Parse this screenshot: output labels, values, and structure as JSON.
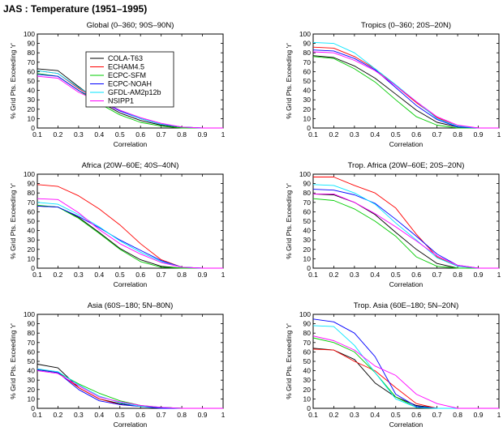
{
  "figure": {
    "title": "JAS : Temperature (1951–1995)"
  },
  "colors": {
    "COLA-T63": "#000000",
    "ECHAM4.5": "#ff0000",
    "ECPC-SFM": "#00cc00",
    "ECPC-NOAH": "#0000ff",
    "GFDL-AM2p12b": "#00e5ff",
    "NSIPP1": "#ff00ff"
  },
  "chart_data": [
    {
      "type": "line",
      "title": "Global (0–360; 90S–90N)",
      "xlabel": "Correlation",
      "ylabel": "% Grid Pts. Exceeding 'r'",
      "xlim": [
        0.1,
        1
      ],
      "ylim": [
        0,
        100
      ],
      "legend": "upper-left",
      "x": [
        0.1,
        0.2,
        0.3,
        0.4,
        0.5,
        0.6,
        0.7,
        0.8,
        0.9,
        1.0
      ],
      "series": [
        {
          "name": "COLA-T63",
          "values": [
            63,
            61,
            44,
            28,
            16,
            8,
            3,
            0,
            0,
            0
          ]
        },
        {
          "name": "ECHAM4.5",
          "values": [
            61,
            58,
            42,
            30,
            19,
            10,
            4,
            1,
            0,
            0
          ]
        },
        {
          "name": "ECPC-SFM",
          "values": [
            58,
            55,
            40,
            26,
            14,
            6,
            2,
            0,
            0,
            0
          ]
        },
        {
          "name": "ECPC-NOAH",
          "values": [
            57,
            55,
            40,
            29,
            18,
            10,
            4,
            1,
            0,
            0
          ]
        },
        {
          "name": "GFDL-AM2p12b",
          "values": [
            61,
            58,
            43,
            30,
            19,
            10,
            4,
            1,
            0,
            0
          ]
        },
        {
          "name": "NSIPP1",
          "values": [
            55,
            53,
            38,
            28,
            19,
            11,
            5,
            1,
            0,
            0
          ]
        }
      ]
    },
    {
      "type": "line",
      "title": "Tropics (0–360; 20S–20N)",
      "xlabel": "Correlation",
      "ylabel": "% Grid Pts. Exceeding 'r'",
      "xlim": [
        0.1,
        1
      ],
      "ylim": [
        0,
        100
      ],
      "x": [
        0.1,
        0.2,
        0.3,
        0.4,
        0.5,
        0.6,
        0.7,
        0.8,
        0.9,
        1.0
      ],
      "series": [
        {
          "name": "COLA-T63",
          "values": [
            77,
            75,
            66,
            53,
            36,
            19,
            6,
            1,
            0,
            0
          ]
        },
        {
          "name": "ECHAM4.5",
          "values": [
            86,
            85,
            76,
            63,
            45,
            27,
            11,
            2,
            0,
            0
          ]
        },
        {
          "name": "ECPC-SFM",
          "values": [
            76,
            74,
            63,
            49,
            30,
            12,
            3,
            0,
            0,
            0
          ]
        },
        {
          "name": "ECPC-NOAH",
          "values": [
            83,
            82,
            74,
            62,
            43,
            24,
            9,
            1,
            0,
            0
          ]
        },
        {
          "name": "GFDL-AM2p12b",
          "values": [
            91,
            90,
            80,
            63,
            46,
            28,
            10,
            2,
            0,
            0
          ]
        },
        {
          "name": "NSIPP1",
          "values": [
            81,
            80,
            72,
            61,
            45,
            28,
            12,
            3,
            0,
            0
          ]
        }
      ]
    },
    {
      "type": "line",
      "title": "Africa (20W–60E; 40S–40N)",
      "xlabel": "Correlation",
      "ylabel": "% Grid Pts. Exceeding 'r'",
      "xlim": [
        0.1,
        1
      ],
      "ylim": [
        0,
        100
      ],
      "x": [
        0.1,
        0.2,
        0.3,
        0.4,
        0.5,
        0.6,
        0.7,
        0.8,
        0.9,
        1.0
      ],
      "series": [
        {
          "name": "COLA-T63",
          "values": [
            66,
            65,
            54,
            38,
            21,
            9,
            2,
            0,
            0,
            0
          ]
        },
        {
          "name": "ECHAM4.5",
          "values": [
            89,
            87,
            77,
            63,
            46,
            26,
            9,
            1,
            0,
            0
          ]
        },
        {
          "name": "ECPC-SFM",
          "values": [
            67,
            65,
            53,
            37,
            20,
            7,
            1,
            0,
            0,
            0
          ]
        },
        {
          "name": "ECPC-NOAH",
          "values": [
            66,
            65,
            55,
            43,
            30,
            19,
            8,
            1,
            0,
            0
          ]
        },
        {
          "name": "GFDL-AM2p12b",
          "values": [
            70,
            68,
            57,
            44,
            29,
            17,
            7,
            1,
            0,
            0
          ]
        },
        {
          "name": "NSIPP1",
          "values": [
            74,
            73,
            59,
            41,
            26,
            15,
            6,
            1,
            0,
            0
          ]
        }
      ]
    },
    {
      "type": "line",
      "title": "Trop. Africa (20W–60E; 20S–20N)",
      "xlabel": "Correlation",
      "ylabel": "% Grid Pts. Exceeding 'r'",
      "xlim": [
        0.1,
        1
      ],
      "ylim": [
        0,
        100
      ],
      "x": [
        0.1,
        0.2,
        0.3,
        0.4,
        0.5,
        0.6,
        0.7,
        0.8,
        0.9,
        1.0
      ],
      "series": [
        {
          "name": "COLA-T63",
          "values": [
            79,
            78,
            70,
            57,
            38,
            20,
            5,
            0,
            0,
            0
          ]
        },
        {
          "name": "ECHAM4.5",
          "values": [
            97,
            97,
            88,
            80,
            64,
            36,
            12,
            2,
            0,
            0
          ]
        },
        {
          "name": "ECPC-SFM",
          "values": [
            74,
            72,
            63,
            50,
            34,
            12,
            2,
            0,
            0,
            0
          ]
        },
        {
          "name": "ECPC-NOAH",
          "values": [
            84,
            83,
            78,
            69,
            52,
            34,
            15,
            3,
            0,
            0
          ]
        },
        {
          "name": "GFDL-AM2p12b",
          "values": [
            89,
            88,
            80,
            68,
            48,
            30,
            11,
            2,
            0,
            0
          ]
        },
        {
          "name": "NSIPP1",
          "values": [
            79,
            79,
            70,
            58,
            44,
            29,
            13,
            3,
            0,
            0
          ]
        }
      ]
    },
    {
      "type": "line",
      "title": "Asia (60S–180; 5N–80N)",
      "xlabel": "Correlation",
      "ylabel": "% Grid Pts. Exceeding 'r'",
      "xlim": [
        0.1,
        1
      ],
      "ylim": [
        0,
        100
      ],
      "x": [
        0.1,
        0.2,
        0.3,
        0.4,
        0.5,
        0.6,
        0.7,
        0.8,
        0.9,
        1.0
      ],
      "series": [
        {
          "name": "COLA-T63",
          "values": [
            47,
            43,
            22,
            10,
            5,
            2,
            1,
            0,
            0,
            0
          ]
        },
        {
          "name": "ECHAM4.5",
          "values": [
            42,
            38,
            22,
            10,
            4,
            2,
            1,
            0,
            0,
            0
          ]
        },
        {
          "name": "ECPC-SFM",
          "values": [
            41,
            38,
            26,
            16,
            8,
            3,
            1,
            0,
            0,
            0
          ]
        },
        {
          "name": "ECPC-NOAH",
          "values": [
            41,
            38,
            20,
            8,
            4,
            2,
            0,
            0,
            0,
            0
          ]
        },
        {
          "name": "GFDL-AM2p12b",
          "values": [
            42,
            39,
            25,
            13,
            6,
            2,
            1,
            0,
            0,
            0
          ]
        },
        {
          "name": "NSIPP1",
          "values": [
            40,
            37,
            24,
            12,
            7,
            3,
            1,
            0,
            0,
            0
          ]
        }
      ]
    },
    {
      "type": "line",
      "title": "Trop. Asia (60E–180; 5N–20N)",
      "xlabel": "Correlation",
      "ylabel": "% Grid Pts. Exceeding 'r'",
      "xlim": [
        0.1,
        1
      ],
      "ylim": [
        0,
        100
      ],
      "x": [
        0.1,
        0.2,
        0.3,
        0.4,
        0.5,
        0.6,
        0.7,
        0.8,
        0.9,
        1.0
      ],
      "series": [
        {
          "name": "COLA-T63",
          "values": [
            64,
            62,
            52,
            27,
            12,
            3,
            0,
            0,
            0,
            0
          ]
        },
        {
          "name": "ECHAM4.5",
          "values": [
            63,
            62,
            50,
            40,
            22,
            5,
            0,
            0,
            0,
            0
          ]
        },
        {
          "name": "ECPC-SFM",
          "values": [
            75,
            70,
            60,
            38,
            12,
            1,
            0,
            0,
            0,
            0
          ]
        },
        {
          "name": "ECPC-NOAH",
          "values": [
            95,
            92,
            80,
            55,
            15,
            2,
            0,
            0,
            0,
            0
          ]
        },
        {
          "name": "GFDL-AM2p12b",
          "values": [
            88,
            87,
            67,
            38,
            10,
            1,
            0,
            0,
            0,
            0
          ]
        },
        {
          "name": "NSIPP1",
          "values": [
            77,
            72,
            62,
            45,
            35,
            15,
            5,
            0,
            0,
            0
          ]
        }
      ]
    }
  ]
}
